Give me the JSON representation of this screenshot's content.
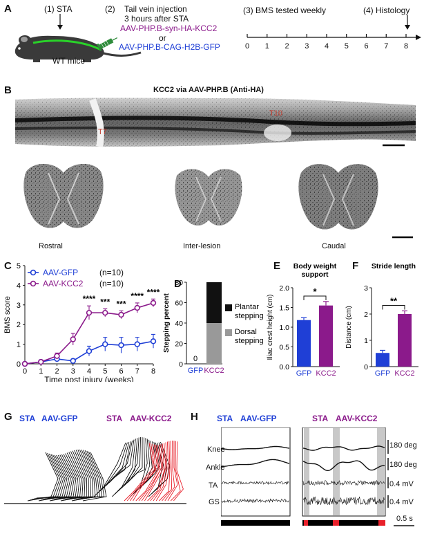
{
  "panels": {
    "A": "A",
    "B": "B",
    "C": "C",
    "D": "D",
    "E": "E",
    "F": "F",
    "G": "G",
    "H": "H"
  },
  "panel_a": {
    "step1": "(1) STA",
    "step2_num": "(2)",
    "step2_line1": "Tail vein injection",
    "step2_line2": "3 hours after STA",
    "construct_kcc2": "AAV-PHP.B-syn-HA-KCC2",
    "or": "or",
    "construct_gfp": "AAV-PHP.B-CAG-H2B-GFP",
    "mouse_label": "WT mice",
    "step3": "(3) BMS tested weekly",
    "step4": "(4) Histology",
    "timeline_ticks": [
      "0",
      "1",
      "2",
      "3",
      "4",
      "5",
      "6",
      "7",
      "8"
    ]
  },
  "panel_b": {
    "title": "KCC2 via AAV-PHP.B (Anti-HA)",
    "t7": "T7",
    "t10": "T10",
    "rostral": "Rostral",
    "inter": "Inter-lesion",
    "caudal": "Caudal"
  },
  "panel_c": {
    "legend_gfp": "AAV-GFP",
    "legend_gfp_n": "(n=10)",
    "legend_kcc2": "AAV-KCC2",
    "legend_kcc2_n": "(n=10)",
    "ylabel": "BMS score",
    "xlabel": "Time post injury (weeks)",
    "yticks": [
      "0",
      "1",
      "2",
      "3",
      "4",
      "5"
    ],
    "xticks": [
      "0",
      "1",
      "2",
      "3",
      "4",
      "5",
      "6",
      "7",
      "8"
    ],
    "stars": [
      "****",
      "***",
      "***",
      "****",
      "****"
    ]
  },
  "panel_d": {
    "ylabel": "Stepping percent",
    "yticks": [
      "0",
      "20",
      "40",
      "60",
      "80"
    ],
    "xticks": [
      "GFP",
      "KCC2"
    ],
    "gfp_zero": "0",
    "legend_plantar": "Plantar stepping",
    "legend_dorsal": "Dorsal stepping"
  },
  "panel_e": {
    "title_l1": "Body weight",
    "title_l2": "support",
    "ylabel": "Iliac crest height (cm)",
    "yticks": [
      "0.0",
      "0.5",
      "1.0",
      "1.5",
      "2.0"
    ],
    "xticks": [
      "GFP",
      "KCC2"
    ],
    "sig": "*"
  },
  "panel_f": {
    "title": "Stride length",
    "ylabel": "Distance (cm)",
    "yticks": [
      "0",
      "1",
      "2",
      "3"
    ],
    "xticks": [
      "GFP",
      "KCC2"
    ],
    "sig": "**"
  },
  "panel_g": {
    "left_sta": "STA",
    "left_vec": "AAV-GFP",
    "right_sta": "STA",
    "right_vec": "AAV-KCC2"
  },
  "panel_h": {
    "left_sta": "STA",
    "left_vec": "AAV-GFP",
    "right_sta": "STA",
    "right_vec": "AAV-KCC2",
    "knee": "Knee",
    "ankle": "Ankle",
    "ta": "TA",
    "gs": "GS",
    "scale_knee": "180 deg",
    "scale_ankle": "180 deg",
    "scale_ta": "0.4 mV",
    "scale_gs": "0.4 mV",
    "time_scale": "0.5 s"
  },
  "colors": {
    "gfp": "#1f3fd6",
    "kcc2": "#8b1a8b",
    "stance": "#e8202a",
    "mouse": "#3a3a3a",
    "cord": "#29d329",
    "syringe": "#2e8b3a"
  },
  "chart_data": [
    {
      "type": "line",
      "ylabel": "BMS score",
      "xlabel": "Time post injury (weeks)",
      "x": [
        0,
        1,
        2,
        3,
        4,
        5,
        6,
        7,
        8
      ],
      "ylim": [
        0,
        5
      ],
      "series": [
        {
          "name": "AAV-GFP",
          "values": [
            0,
            0.1,
            0.25,
            0.15,
            0.65,
            1.0,
            0.95,
            1.0,
            1.15
          ],
          "errors": [
            0.05,
            0.1,
            0.1,
            0.1,
            0.25,
            0.35,
            0.4,
            0.35,
            0.35
          ]
        },
        {
          "name": "AAV-KCC2",
          "values": [
            0,
            0.1,
            0.4,
            1.25,
            2.6,
            2.6,
            2.5,
            2.85,
            3.1
          ],
          "errors": [
            0.05,
            0.1,
            0.15,
            0.3,
            0.35,
            0.2,
            0.2,
            0.25,
            0.2
          ]
        }
      ]
    },
    {
      "type": "bar",
      "ylabel": "Stepping percent",
      "categories": [
        "GFP",
        "KCC2"
      ],
      "ylim": [
        0,
        80
      ],
      "series": [
        {
          "name": "Dorsal stepping",
          "values": [
            0,
            40
          ]
        },
        {
          "name": "Plantar stepping",
          "values": [
            0,
            40
          ]
        }
      ]
    },
    {
      "type": "bar",
      "title": "Body weight support",
      "ylabel": "Iliac crest height (cm)",
      "categories": [
        "GFP",
        "KCC2"
      ],
      "values": [
        1.18,
        1.55
      ],
      "errors": [
        0.06,
        0.1
      ],
      "ylim": [
        0,
        2.0
      ]
    },
    {
      "type": "bar",
      "title": "Stride length",
      "ylabel": "Distance (cm)",
      "categories": [
        "GFP",
        "KCC2"
      ],
      "values": [
        0.52,
        2.0
      ],
      "errors": [
        0.1,
        0.12
      ],
      "ylim": [
        0,
        3
      ]
    }
  ]
}
